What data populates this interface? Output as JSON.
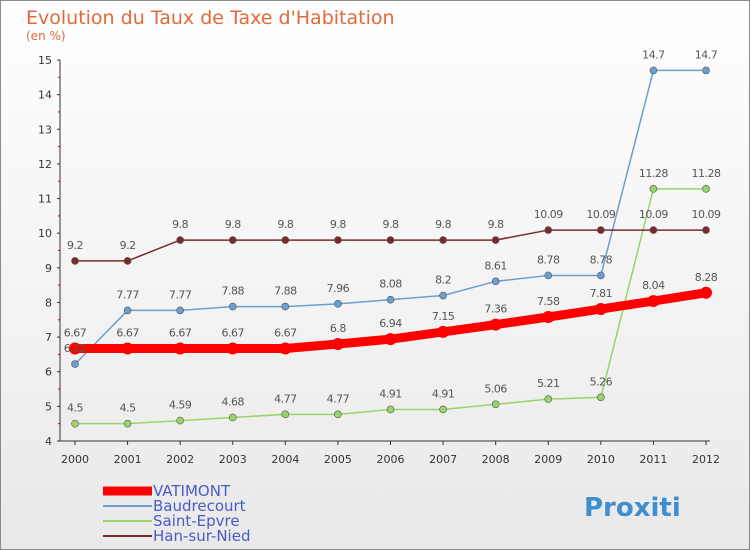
{
  "colors": {
    "VATIMONT": "#ff0000",
    "Baudrecourt": "#6a9fd0",
    "Saint-Epvre": "#99d36a",
    "Han-sur-Nied": "#7a2a2a",
    "title": "#e06a3b",
    "legend_text": "#4a5bc9"
  },
  "logo": "Proxiti",
  "chart_data": {
    "type": "line",
    "title": "Evolution du Taux de Taxe d'Habitation",
    "subtitle": "(en %)",
    "x": [
      "2000",
      "2001",
      "2002",
      "2003",
      "2004",
      "2005",
      "2006",
      "2007",
      "2008",
      "2009",
      "2010",
      "2011",
      "2012"
    ],
    "ylim": [
      4,
      15
    ],
    "yticks": [
      4,
      5,
      6,
      7,
      8,
      9,
      10,
      11,
      12,
      13,
      14,
      15
    ],
    "grid": false,
    "legend_position": "bottom-left",
    "series": [
      {
        "name": "VATIMONT",
        "values": [
          6.67,
          6.67,
          6.67,
          6.67,
          6.67,
          6.8,
          6.94,
          7.15,
          7.36,
          7.58,
          7.81,
          8.04,
          8.28
        ],
        "labels": [
          "6.67",
          "6.67",
          "6.67",
          "6.67",
          "6.67",
          "6.8",
          "6.94",
          "7.15",
          "7.36",
          "7.58",
          "7.81",
          "8.04",
          "8.28"
        ]
      },
      {
        "name": "Baudrecourt",
        "values": [
          6.22,
          7.77,
          7.77,
          7.88,
          7.88,
          7.96,
          8.08,
          8.2,
          8.61,
          8.78,
          8.78,
          14.7,
          14.7
        ],
        "labels": [
          "6.22",
          "7.77",
          "7.77",
          "7.88",
          "7.88",
          "7.96",
          "8.08",
          "8.2",
          "8.61",
          "8.78",
          "8.78",
          "14.7",
          "14.7"
        ]
      },
      {
        "name": "Saint-Epvre",
        "values": [
          4.5,
          4.5,
          4.59,
          4.68,
          4.77,
          4.77,
          4.91,
          4.91,
          5.06,
          5.21,
          5.26,
          11.28,
          11.28
        ],
        "labels": [
          "4.5",
          "4.5",
          "4.59",
          "4.68",
          "4.77",
          "4.77",
          "4.91",
          "4.91",
          "5.06",
          "5.21",
          "5.26",
          "11.28",
          "11.28"
        ]
      },
      {
        "name": "Han-sur-Nied",
        "values": [
          9.2,
          9.2,
          9.8,
          9.8,
          9.8,
          9.8,
          9.8,
          9.8,
          9.8,
          10.09,
          10.09,
          10.09,
          10.09
        ],
        "labels": [
          "9.2",
          "9.2",
          "9.8",
          "9.8",
          "9.8",
          "9.8",
          "9.8",
          "9.8",
          "9.8",
          "10.09",
          "10.09",
          "10.09",
          "10.09"
        ]
      }
    ]
  }
}
